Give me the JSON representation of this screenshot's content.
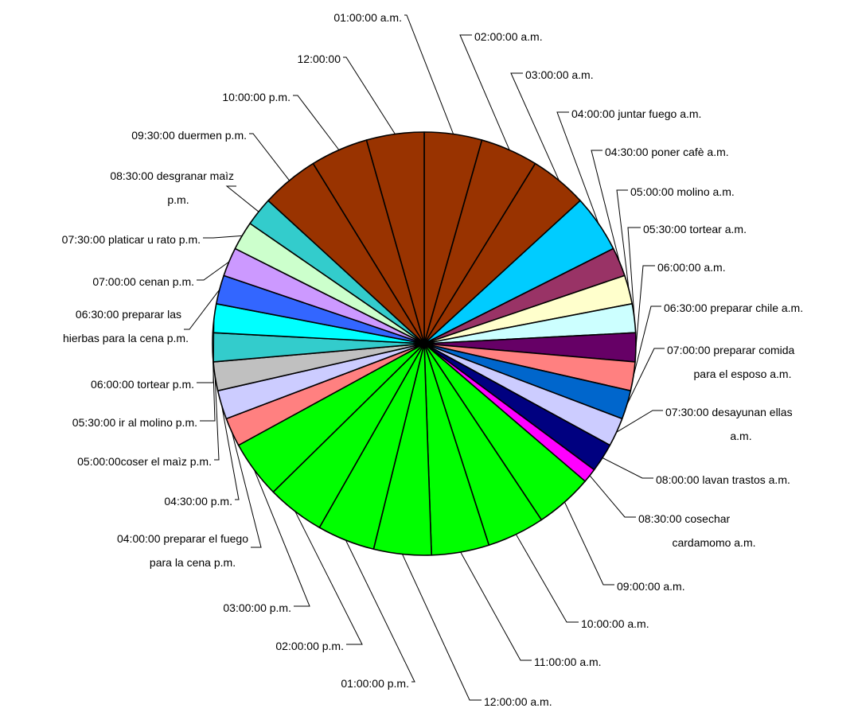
{
  "chart_data": {
    "type": "pie",
    "title": "",
    "start": "12 o'clock, clockwise",
    "slice_border_color": "#000000",
    "slices": [
      {
        "label": [
          "01:00:00 a.m."
        ],
        "value": 1,
        "color": "#993300"
      },
      {
        "label": [
          "02:00:00 a.m."
        ],
        "value": 1,
        "color": "#993300"
      },
      {
        "label": [
          "03:00:00 a.m."
        ],
        "value": 1,
        "color": "#993300"
      },
      {
        "label": [
          "04:00:00 juntar fuego a.m."
        ],
        "value": 1,
        "color": "#00CCFF"
      },
      {
        "label": [
          "04:30:00 poner cafè a.m."
        ],
        "value": 0.5,
        "color": "#993366"
      },
      {
        "label": [
          "05:00:00 molino a.m."
        ],
        "value": 0.5,
        "color": "#FFFFCC"
      },
      {
        "label": [
          "05:30:00 tortear a.m."
        ],
        "value": 0.5,
        "color": "#CCFFFF"
      },
      {
        "label": [
          "06:00:00 a.m."
        ],
        "value": 0.5,
        "color": "#660066"
      },
      {
        "label": [
          "06:30:00 preparar chile a.m."
        ],
        "value": 0.5,
        "color": "#FF8080"
      },
      {
        "label": [
          "07:00:00 preparar comida",
          "para el esposo a.m."
        ],
        "value": 0.5,
        "color": "#0066CC"
      },
      {
        "label": [
          "07:30:00 desayunan ellas",
          "a.m."
        ],
        "value": 0.5,
        "color": "#CCCCFF"
      },
      {
        "label": [
          "08:00:00 lavan trastos a.m."
        ],
        "value": 0.5,
        "color": "#000080"
      },
      {
        "label": [
          "08:30:00 cosechar",
          "cardamomo a.m."
        ],
        "value": 0.25,
        "color": "#FF00FF"
      },
      {
        "label": [
          "09:00:00 a.m."
        ],
        "value": 1,
        "color": "#00FF00"
      },
      {
        "label": [
          "10:00:00 a.m."
        ],
        "value": 1,
        "color": "#00FF00"
      },
      {
        "label": [
          "11:00:00 a.m."
        ],
        "value": 1,
        "color": "#00FF00"
      },
      {
        "label": [
          "12:00:00 a.m."
        ],
        "value": 1,
        "color": "#00FF00"
      },
      {
        "label": [
          "01:00:00 p.m."
        ],
        "value": 1,
        "color": "#00FF00"
      },
      {
        "label": [
          "02:00:00 p.m."
        ],
        "value": 1,
        "color": "#00FF00"
      },
      {
        "label": [
          "03:00:00 p.m."
        ],
        "value": 1,
        "color": "#00FF00"
      },
      {
        "label": [
          "04:00:00  preparar el fuego",
          "para la cena p.m."
        ],
        "value": 0.5,
        "color": "#FF8080"
      },
      {
        "label": [
          "04:30:00  p.m."
        ],
        "value": 0.5,
        "color": "#CCCCFF"
      },
      {
        "label": [
          "05:00:00coser el maìz p.m."
        ],
        "value": 0.5,
        "color": "#C0C0C0"
      },
      {
        "label": [
          "05:30:00 ir al molino p.m."
        ],
        "value": 0.5,
        "color": "#33CCCC"
      },
      {
        "label": [
          "06:00:00 tortear p.m."
        ],
        "value": 0.5,
        "color": "#00FFFF"
      },
      {
        "label": [
          "06:30:00 preparar las",
          "hierbas   para la cena p.m."
        ],
        "value": 0.5,
        "color": "#3366FF"
      },
      {
        "label": [
          "07:00:00 cenan p.m."
        ],
        "value": 0.5,
        "color": "#CC99FF"
      },
      {
        "label": [
          "07:30:00 platicar u rato p.m."
        ],
        "value": 0.5,
        "color": "#CCFFCC"
      },
      {
        "label": [
          "08:30:00 desgranar maìz",
          "p.m."
        ],
        "value": 0.5,
        "color": "#33CCCC"
      },
      {
        "label": [
          "09:30:00 duermen p.m."
        ],
        "value": 1,
        "color": "#993300"
      },
      {
        "label": [
          "10:00:00 p.m."
        ],
        "value": 1,
        "color": "#993300"
      },
      {
        "label": [
          "12:00:00"
        ],
        "value": 1,
        "color": "#993300"
      }
    ]
  }
}
